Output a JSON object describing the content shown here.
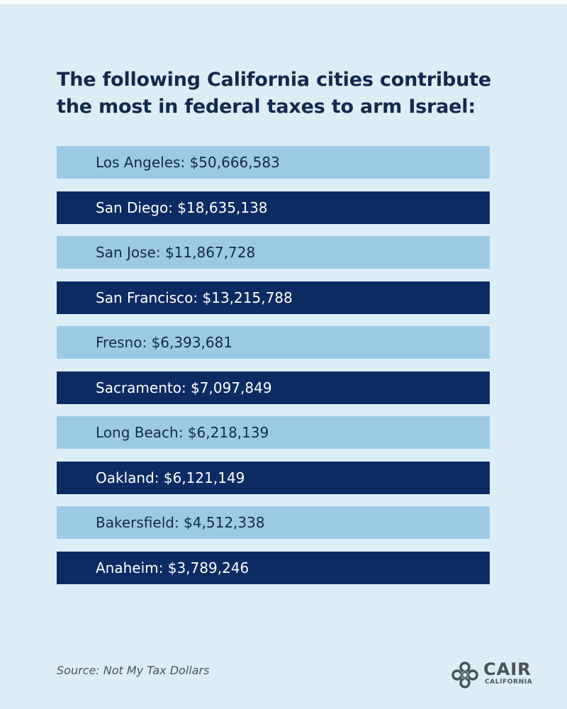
{
  "headline": {
    "line1": "The following California cities contribute",
    "line2": "the most in federal taxes to arm Israel:"
  },
  "cities": [
    {
      "name": "Los Angeles",
      "amount": "$50,666,583",
      "style": "light"
    },
    {
      "name": "San Diego",
      "amount": "$18,635,138",
      "style": "dark"
    },
    {
      "name": "San Jose",
      "amount": "$11,867,728",
      "style": "light"
    },
    {
      "name": "San Francisco",
      "amount": "$13,215,788",
      "style": "dark"
    },
    {
      "name": "Fresno",
      "amount": "$6,393,681",
      "style": "light"
    },
    {
      "name": "Sacramento",
      "amount": "$7,097,849",
      "style": "dark"
    },
    {
      "name": "Long Beach",
      "amount": "$6,218,139",
      "style": "light"
    },
    {
      "name": "Oakland",
      "amount": "$6,121,149",
      "style": "dark"
    },
    {
      "name": "Bakersfield",
      "amount": "$4,512,338",
      "style": "light"
    },
    {
      "name": "Anaheim",
      "amount": "$3,789,246",
      "style": "dark"
    }
  ],
  "source": "Source: Not My Tax Dollars",
  "logo": {
    "name": "CAIR",
    "sub": "CALIFORNIA",
    "icon": "cair-emblem-icon"
  },
  "colors": {
    "background": "#dcedf6",
    "headline": "#13294d",
    "row_light": "#9ccae6",
    "row_dark": "#0d2b63"
  }
}
